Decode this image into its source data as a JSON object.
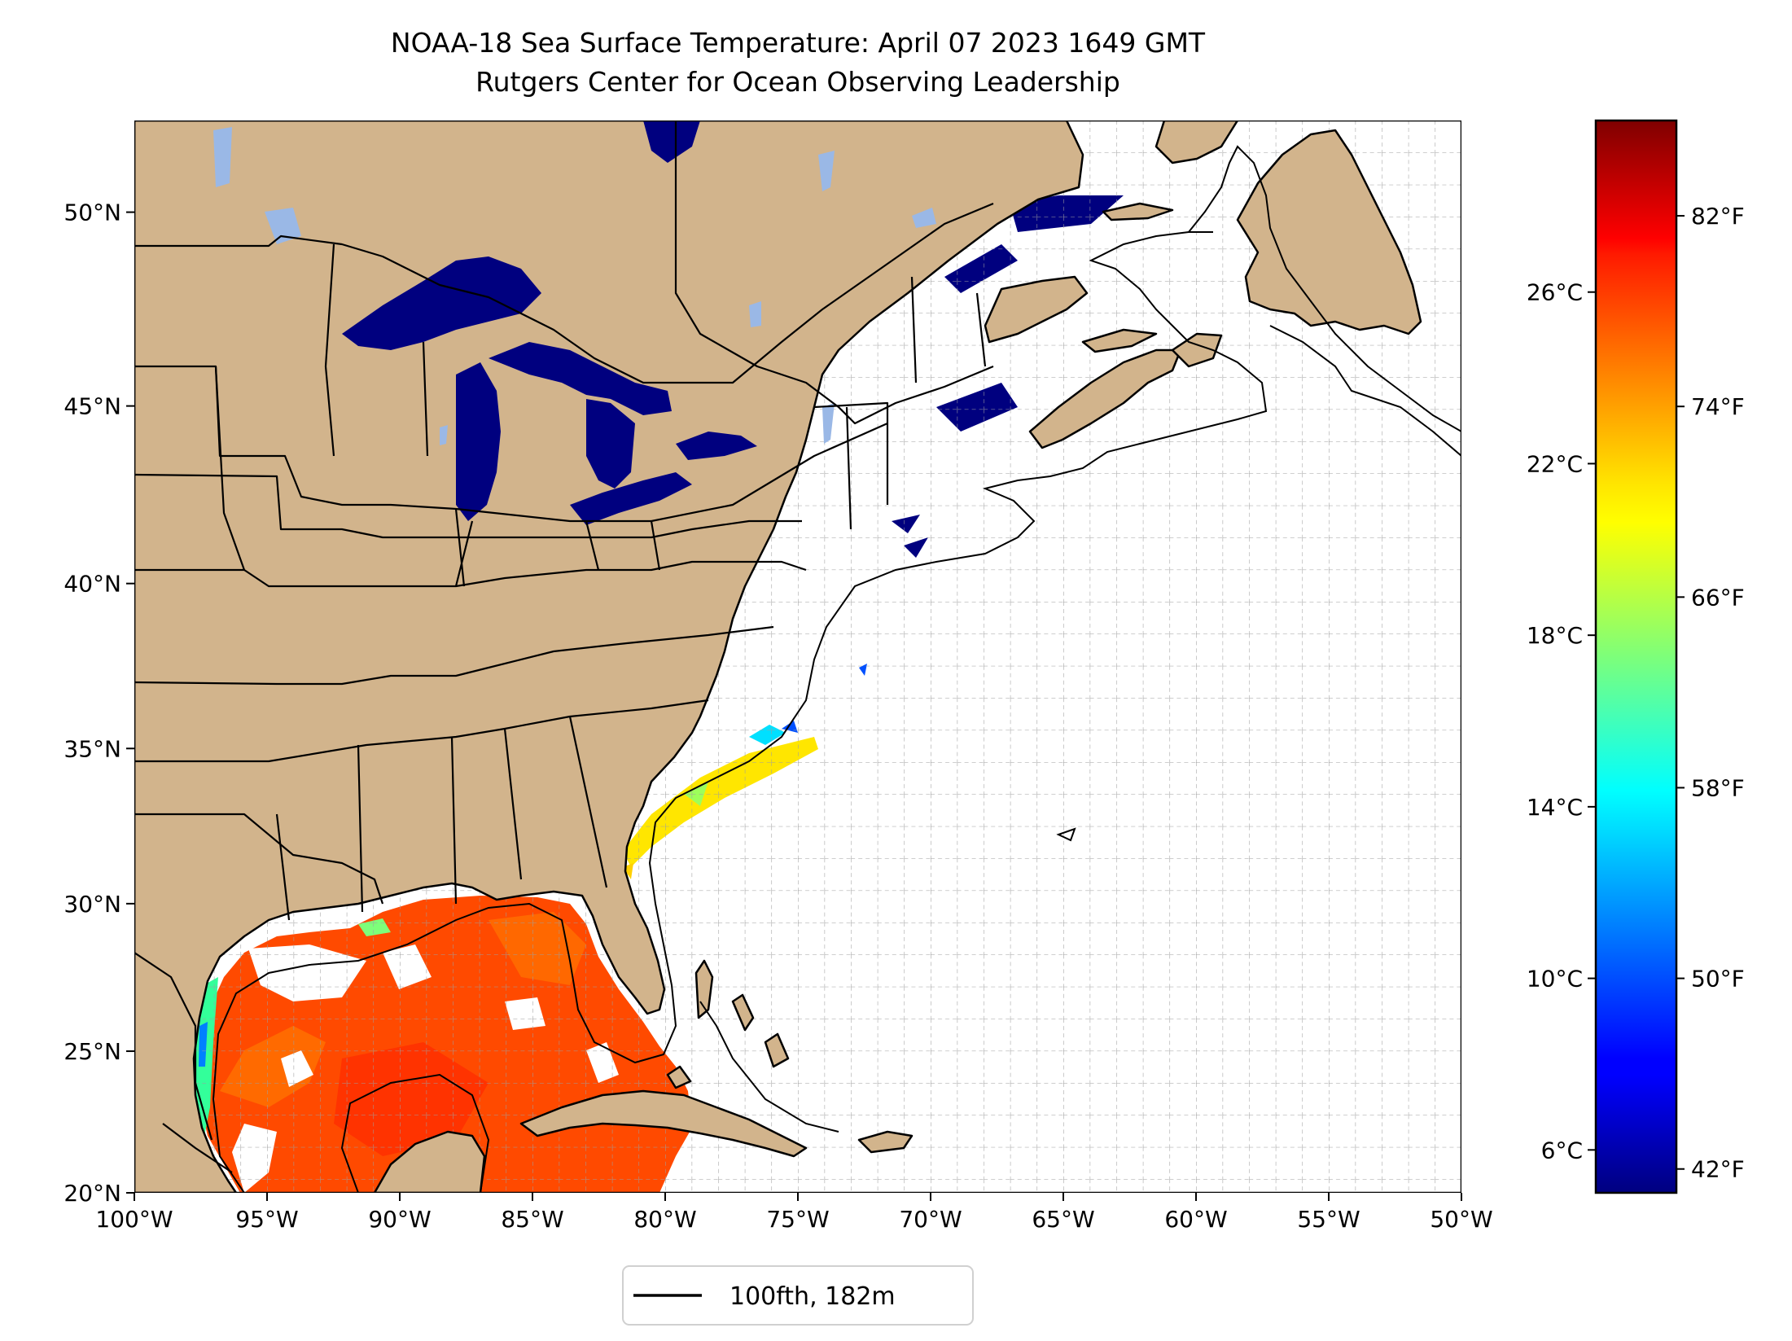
{
  "title_line1": "NOAA-18 Sea Surface Temperature: April 07 2023 1649 GMT",
  "title_line2": "Rutgers Center for Ocean Observing Leadership",
  "colors": {
    "land": "#d2b48c",
    "lakes": "#00007f",
    "gulf_sst": "#ff4a00",
    "no_data": "#ffffff"
  },
  "map": {
    "lon_range": [
      -100,
      -50
    ],
    "lat_range": [
      20,
      52.2
    ],
    "grid": true,
    "lon_ticks": [
      -100,
      -95,
      -90,
      -85,
      -80,
      -75,
      -70,
      -65,
      -60,
      -55,
      -50
    ],
    "lon_labels": [
      "100°W",
      "95°W",
      "90°W",
      "85°W",
      "80°W",
      "75°W",
      "70°W",
      "65°W",
      "60°W",
      "55°W",
      "50°W"
    ],
    "lat_ticks": [
      20,
      25,
      30,
      35,
      40,
      45,
      50
    ],
    "lat_labels": [
      "20°N",
      "25°N",
      "30°N",
      "35°N",
      "40°N",
      "45°N",
      "50°N"
    ]
  },
  "colorbar": {
    "colormap": "jet",
    "range_c": [
      5,
      30
    ],
    "celsius_ticks": [
      6,
      10,
      14,
      18,
      22,
      26
    ],
    "celsius_labels": [
      "6°C",
      "10°C",
      "14°C",
      "18°C",
      "22°C",
      "26°C"
    ],
    "fahrenheit_ticks": [
      42,
      50,
      58,
      66,
      74,
      82
    ],
    "fahrenheit_labels": [
      "42°F",
      "50°F",
      "58°F",
      "66°F",
      "74°F",
      "82°F"
    ]
  },
  "legend": {
    "entries": [
      {
        "label": "100fth, 182m",
        "line_color": "#000000"
      }
    ]
  }
}
